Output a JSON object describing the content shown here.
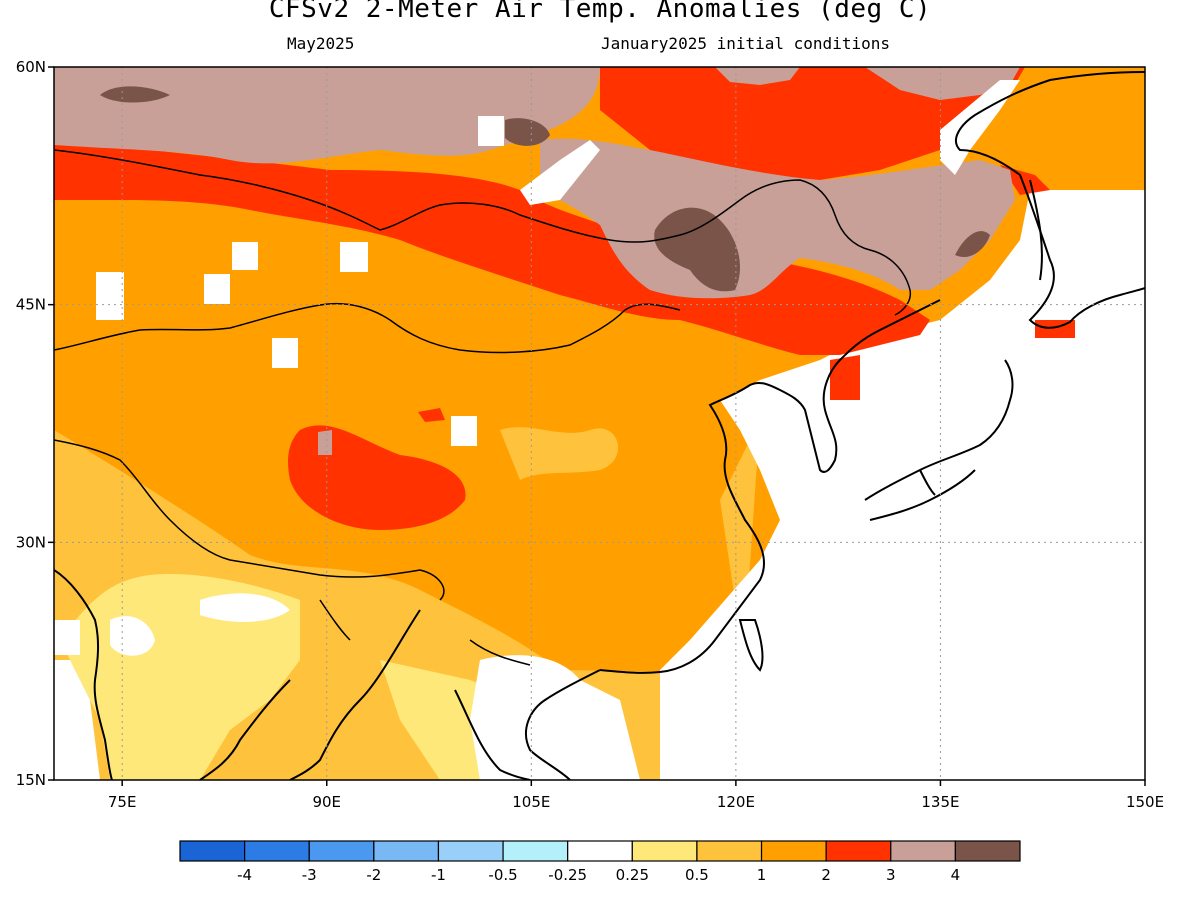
{
  "title": "CFSv2 2-Meter Air Temp. Anomalies (deg C)",
  "subtitle_left": "May2025",
  "subtitle_right": "January2025 initial conditions",
  "map": {
    "lon_range": [
      70,
      150
    ],
    "lat_range": [
      15,
      60
    ],
    "lon_ticks": [
      {
        "value": 75,
        "label": "75E"
      },
      {
        "value": 90,
        "label": "90E"
      },
      {
        "value": 105,
        "label": "105E"
      },
      {
        "value": 120,
        "label": "120E"
      },
      {
        "value": 135,
        "label": "135E"
      },
      {
        "value": 150,
        "label": "150E"
      }
    ],
    "lat_ticks": [
      {
        "value": 15,
        "label": "15N"
      },
      {
        "value": 30,
        "label": "30N"
      },
      {
        "value": 45,
        "label": "45N"
      },
      {
        "value": 60,
        "label": "60N"
      }
    ],
    "gridlines": "dotted"
  },
  "colorbar": {
    "colors": [
      "#1a64d6",
      "#2d7ce6",
      "#4a98ef",
      "#78b8f5",
      "#98d0fa",
      "#b4f0fa",
      "#ffffff",
      "#ffe87a",
      "#ffc23c",
      "#ffa000",
      "#ff3200",
      "#c8a098",
      "#7a5448"
    ],
    "labels": [
      "-4",
      "-3",
      "-2",
      "-1",
      "-0.5",
      "-0.25",
      "0.25",
      "0.5",
      "1",
      "2",
      "3",
      "4"
    ]
  }
}
